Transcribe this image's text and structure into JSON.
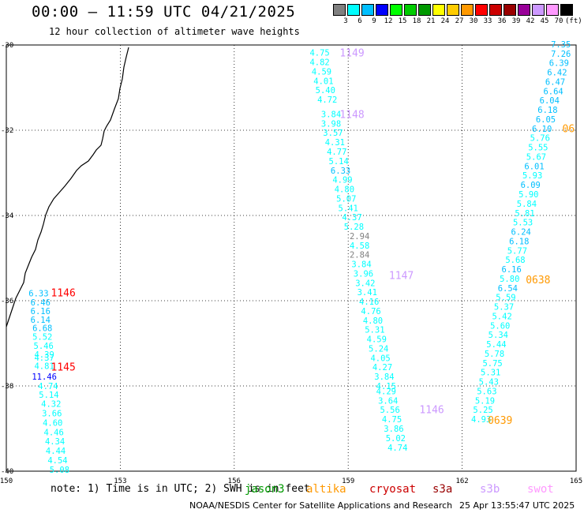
{
  "title": "00:00 – 11:59 UTC 04/21/2025",
  "subtitle": "12 hour collection of altimeter wave heights",
  "legend": {
    "colors": [
      "#808080",
      "#00ffff",
      "#00bfff",
      "#0000ff",
      "#00ff00",
      "#00cc00",
      "#009900",
      "#ffff00",
      "#ffcc00",
      "#ff9900",
      "#ff0000",
      "#cc0000",
      "#990000",
      "#990099",
      "#cc99ff",
      "#ff99ff",
      "#000000"
    ],
    "labels": [
      "3",
      "6",
      "9",
      "12",
      "15",
      "18",
      "21",
      "24",
      "27",
      "30",
      "33",
      "36",
      "39",
      "42",
      "45",
      "70",
      "(ft)"
    ]
  },
  "map": {
    "lon_range": [
      150,
      165
    ],
    "lat_range": [
      -30,
      -40
    ],
    "x_ticks": [
      "150",
      "153",
      "156",
      "159",
      "162",
      "165"
    ],
    "y_ticks": [
      "-30",
      "-32",
      "-34",
      "-36",
      "-38",
      "-40"
    ]
  },
  "passes": [
    {
      "label": "1146",
      "color": "#ff0000",
      "lon": 151.5,
      "lat": -35.81
    },
    {
      "label": "1145",
      "color": "#ff0000",
      "lon": 151.5,
      "lat": -37.55
    },
    {
      "label": "1149",
      "color": "#cc99ff",
      "lon": 159.1,
      "lat": -30.18
    },
    {
      "label": "1148",
      "color": "#cc99ff",
      "lon": 159.1,
      "lat": -31.62
    },
    {
      "label": "1147",
      "color": "#cc99ff",
      "lon": 160.4,
      "lat": -35.4
    },
    {
      "label": "1146",
      "color": "#cc99ff",
      "lon": 161.2,
      "lat": -38.55
    },
    {
      "label": "06",
      "color": "#ff9900",
      "lon": 164.8,
      "lat": -31.95
    },
    {
      "label": "0638",
      "color": "#ff9900",
      "lon": 164.0,
      "lat": -35.5
    },
    {
      "label": "0639",
      "color": "#ff9900",
      "lon": 163.0,
      "lat": -38.8
    }
  ],
  "wave_heights": [
    {
      "lon": 150.85,
      "lat": -35.82,
      "value": "6.33",
      "color": "#00bfff"
    },
    {
      "lon": 150.9,
      "lat": -36.04,
      "value": "6.46",
      "color": "#00bfff"
    },
    {
      "lon": 150.9,
      "lat": -36.24,
      "value": "6.16",
      "color": "#00bfff"
    },
    {
      "lon": 150.9,
      "lat": -36.44,
      "value": "6.14",
      "color": "#00bfff"
    },
    {
      "lon": 150.95,
      "lat": -36.64,
      "value": "6.68",
      "color": "#00bfff"
    },
    {
      "lon": 150.95,
      "lat": -36.84,
      "value": "5.52",
      "color": "#00ffff"
    },
    {
      "lon": 150.98,
      "lat": -37.06,
      "value": "5.46",
      "color": "#00ffff"
    },
    {
      "lon": 151.0,
      "lat": -37.26,
      "value": "4.39",
      "color": "#00ffff"
    },
    {
      "lon": 151.0,
      "lat": -37.33,
      "value": "4.37",
      "color": "#00ffff"
    },
    {
      "lon": 151.0,
      "lat": -37.53,
      "value": "4.81",
      "color": "#00ffff"
    },
    {
      "lon": 151.0,
      "lat": -37.78,
      "value": "11.46",
      "color": "#0000ff"
    },
    {
      "lon": 151.1,
      "lat": -38.0,
      "value": "4.74",
      "color": "#00ffff"
    },
    {
      "lon": 151.12,
      "lat": -38.2,
      "value": "5.14",
      "color": "#00ffff"
    },
    {
      "lon": 151.18,
      "lat": -38.42,
      "value": "4.32",
      "color": "#00ffff"
    },
    {
      "lon": 151.2,
      "lat": -38.64,
      "value": "3.66",
      "color": "#00ffff"
    },
    {
      "lon": 151.22,
      "lat": -38.86,
      "value": "4.60",
      "color": "#00ffff"
    },
    {
      "lon": 151.25,
      "lat": -39.08,
      "value": "4.46",
      "color": "#00ffff"
    },
    {
      "lon": 151.28,
      "lat": -39.3,
      "value": "4.34",
      "color": "#00ffff"
    },
    {
      "lon": 151.3,
      "lat": -39.52,
      "value": "4.44",
      "color": "#00ffff"
    },
    {
      "lon": 151.35,
      "lat": -39.74,
      "value": "4.54",
      "color": "#00ffff"
    },
    {
      "lon": 151.4,
      "lat": -39.96,
      "value": "5.08",
      "color": "#00ffff"
    },
    {
      "lon": 158.25,
      "lat": -30.18,
      "value": "4.75",
      "color": "#00ffff"
    },
    {
      "lon": 158.25,
      "lat": -30.4,
      "value": "4.82",
      "color": "#00ffff"
    },
    {
      "lon": 158.3,
      "lat": -30.62,
      "value": "4.59",
      "color": "#00ffff"
    },
    {
      "lon": 158.35,
      "lat": -30.84,
      "value": "4.01",
      "color": "#00ffff"
    },
    {
      "lon": 158.4,
      "lat": -31.06,
      "value": "5.40",
      "color": "#00ffff"
    },
    {
      "lon": 158.45,
      "lat": -31.28,
      "value": "4.72",
      "color": "#00ffff"
    },
    {
      "lon": 158.55,
      "lat": -31.62,
      "value": "3.84",
      "color": "#00ffff"
    },
    {
      "lon": 158.55,
      "lat": -31.84,
      "value": "3.98",
      "color": "#00ffff"
    },
    {
      "lon": 158.6,
      "lat": -32.06,
      "value": "3.57",
      "color": "#00ffff"
    },
    {
      "lon": 158.65,
      "lat": -32.28,
      "value": "4.31",
      "color": "#00ffff"
    },
    {
      "lon": 158.7,
      "lat": -32.5,
      "value": "4.77",
      "color": "#00ffff"
    },
    {
      "lon": 158.75,
      "lat": -32.72,
      "value": "5.14",
      "color": "#00ffff"
    },
    {
      "lon": 158.8,
      "lat": -32.94,
      "value": "6.33",
      "color": "#00bfff"
    },
    {
      "lon": 158.85,
      "lat": -33.16,
      "value": "4.99",
      "color": "#00ffff"
    },
    {
      "lon": 158.9,
      "lat": -33.38,
      "value": "4.80",
      "color": "#00ffff"
    },
    {
      "lon": 158.95,
      "lat": -33.6,
      "value": "5.07",
      "color": "#00ffff"
    },
    {
      "lon": 159.0,
      "lat": -33.82,
      "value": "5.41",
      "color": "#00ffff"
    },
    {
      "lon": 159.1,
      "lat": -34.04,
      "value": "4.37",
      "color": "#00ffff"
    },
    {
      "lon": 159.15,
      "lat": -34.26,
      "value": "5.28",
      "color": "#00ffff"
    },
    {
      "lon": 159.3,
      "lat": -34.48,
      "value": "2.94",
      "color": "#808080"
    },
    {
      "lon": 159.3,
      "lat": -34.7,
      "value": "4.58",
      "color": "#00ffff"
    },
    {
      "lon": 159.3,
      "lat": -34.92,
      "value": "2.84",
      "color": "#808080"
    },
    {
      "lon": 159.35,
      "lat": -35.14,
      "value": "3.84",
      "color": "#00ffff"
    },
    {
      "lon": 159.4,
      "lat": -35.36,
      "value": "3.96",
      "color": "#00ffff"
    },
    {
      "lon": 159.45,
      "lat": -35.58,
      "value": "3.42",
      "color": "#00ffff"
    },
    {
      "lon": 159.5,
      "lat": -35.8,
      "value": "3.41",
      "color": "#00ffff"
    },
    {
      "lon": 159.55,
      "lat": -36.02,
      "value": "4.16",
      "color": "#00ffff"
    },
    {
      "lon": 159.6,
      "lat": -36.24,
      "value": "4.76",
      "color": "#00ffff"
    },
    {
      "lon": 159.65,
      "lat": -36.46,
      "value": "4.80",
      "color": "#00ffff"
    },
    {
      "lon": 159.7,
      "lat": -36.68,
      "value": "5.31",
      "color": "#00ffff"
    },
    {
      "lon": 159.75,
      "lat": -36.9,
      "value": "4.59",
      "color": "#00ffff"
    },
    {
      "lon": 159.8,
      "lat": -37.12,
      "value": "5.24",
      "color": "#00ffff"
    },
    {
      "lon": 159.85,
      "lat": -37.34,
      "value": "4.05",
      "color": "#00ffff"
    },
    {
      "lon": 159.9,
      "lat": -37.56,
      "value": "4.27",
      "color": "#00ffff"
    },
    {
      "lon": 159.95,
      "lat": -37.78,
      "value": "3.84",
      "color": "#00ffff"
    },
    {
      "lon": 160.0,
      "lat": -38.0,
      "value": "4.15",
      "color": "#00ffff"
    },
    {
      "lon": 160.0,
      "lat": -38.12,
      "value": "4.29",
      "color": "#00ffff"
    },
    {
      "lon": 160.05,
      "lat": -38.34,
      "value": "3.64",
      "color": "#00ffff"
    },
    {
      "lon": 160.1,
      "lat": -38.56,
      "value": "5.56",
      "color": "#00ffff"
    },
    {
      "lon": 160.15,
      "lat": -38.78,
      "value": "4.75",
      "color": "#00ffff"
    },
    {
      "lon": 160.2,
      "lat": -39.0,
      "value": "3.86",
      "color": "#00ffff"
    },
    {
      "lon": 160.25,
      "lat": -39.22,
      "value": "5.02",
      "color": "#00ffff"
    },
    {
      "lon": 160.3,
      "lat": -39.44,
      "value": "4.74",
      "color": "#00ffff"
    },
    {
      "lon": 164.6,
      "lat": -29.98,
      "value": "7.35",
      "color": "#00bfff"
    },
    {
      "lon": 164.6,
      "lat": -30.2,
      "value": "7.26",
      "color": "#00bfff"
    },
    {
      "lon": 164.55,
      "lat": -30.42,
      "value": "6.39",
      "color": "#00bfff"
    },
    {
      "lon": 164.5,
      "lat": -30.64,
      "value": "6.42",
      "color": "#00bfff"
    },
    {
      "lon": 164.45,
      "lat": -30.86,
      "value": "6.47",
      "color": "#00bfff"
    },
    {
      "lon": 164.4,
      "lat": -31.08,
      "value": "6.64",
      "color": "#00bfff"
    },
    {
      "lon": 164.3,
      "lat": -31.3,
      "value": "6.04",
      "color": "#00bfff"
    },
    {
      "lon": 164.25,
      "lat": -31.52,
      "value": "6.18",
      "color": "#00bfff"
    },
    {
      "lon": 164.2,
      "lat": -31.74,
      "value": "6.05",
      "color": "#00bfff"
    },
    {
      "lon": 164.1,
      "lat": -31.96,
      "value": "6.10",
      "color": "#00bfff"
    },
    {
      "lon": 164.05,
      "lat": -32.18,
      "value": "5.76",
      "color": "#00ffff"
    },
    {
      "lon": 164.0,
      "lat": -32.4,
      "value": "5.55",
      "color": "#00ffff"
    },
    {
      "lon": 163.95,
      "lat": -32.62,
      "value": "5.67",
      "color": "#00ffff"
    },
    {
      "lon": 163.9,
      "lat": -32.84,
      "value": "6.01",
      "color": "#00bfff"
    },
    {
      "lon": 163.85,
      "lat": -33.06,
      "value": "5.93",
      "color": "#00ffff"
    },
    {
      "lon": 163.8,
      "lat": -33.28,
      "value": "6.09",
      "color": "#00bfff"
    },
    {
      "lon": 163.75,
      "lat": -33.5,
      "value": "5.90",
      "color": "#00ffff"
    },
    {
      "lon": 163.7,
      "lat": -33.72,
      "value": "5.84",
      "color": "#00ffff"
    },
    {
      "lon": 163.65,
      "lat": -33.94,
      "value": "5.81",
      "color": "#00ffff"
    },
    {
      "lon": 163.6,
      "lat": -34.16,
      "value": "5.53",
      "color": "#00ffff"
    },
    {
      "lon": 163.55,
      "lat": -34.38,
      "value": "6.24",
      "color": "#00bfff"
    },
    {
      "lon": 163.5,
      "lat": -34.6,
      "value": "6.18",
      "color": "#00bfff"
    },
    {
      "lon": 163.45,
      "lat": -34.82,
      "value": "5.77",
      "color": "#00ffff"
    },
    {
      "lon": 163.4,
      "lat": -35.04,
      "value": "5.68",
      "color": "#00ffff"
    },
    {
      "lon": 163.3,
      "lat": -35.26,
      "value": "6.16",
      "color": "#00bfff"
    },
    {
      "lon": 163.25,
      "lat": -35.48,
      "value": "5.80",
      "color": "#00ffff"
    },
    {
      "lon": 163.2,
      "lat": -35.7,
      "value": "6.54",
      "color": "#00bfff"
    },
    {
      "lon": 163.15,
      "lat": -35.92,
      "value": "5.59",
      "color": "#00ffff"
    },
    {
      "lon": 163.1,
      "lat": -36.14,
      "value": "5.37",
      "color": "#00ffff"
    },
    {
      "lon": 163.05,
      "lat": -36.36,
      "value": "5.42",
      "color": "#00ffff"
    },
    {
      "lon": 163.0,
      "lat": -36.58,
      "value": "5.60",
      "color": "#00ffff"
    },
    {
      "lon": 162.95,
      "lat": -36.8,
      "value": "5.34",
      "color": "#00ffff"
    },
    {
      "lon": 162.9,
      "lat": -37.02,
      "value": "5.44",
      "color": "#00ffff"
    },
    {
      "lon": 162.85,
      "lat": -37.24,
      "value": "5.78",
      "color": "#00ffff"
    },
    {
      "lon": 162.8,
      "lat": -37.46,
      "value": "5.75",
      "color": "#00ffff"
    },
    {
      "lon": 162.75,
      "lat": -37.68,
      "value": "5.31",
      "color": "#00ffff"
    },
    {
      "lon": 162.7,
      "lat": -37.9,
      "value": "5.43",
      "color": "#00ffff"
    },
    {
      "lon": 162.65,
      "lat": -38.12,
      "value": "5.63",
      "color": "#00ffff"
    },
    {
      "lon": 162.6,
      "lat": -38.34,
      "value": "5.19",
      "color": "#00ffff"
    },
    {
      "lon": 162.55,
      "lat": -38.56,
      "value": "5.25",
      "color": "#00ffff"
    },
    {
      "lon": 162.5,
      "lat": -38.78,
      "value": "4.93",
      "color": "#00ffff"
    }
  ],
  "note": "note: 1) Time is in UTC; 2) SWH is in feet",
  "satellites": [
    {
      "name": "jason3",
      "color": "#009900"
    },
    {
      "name": "altika",
      "color": "#ff9900"
    },
    {
      "name": "cryosat",
      "color": "#cc0000"
    },
    {
      "name": "s3a",
      "color": "#990000"
    },
    {
      "name": "s3b",
      "color": "#cc99ff"
    },
    {
      "name": "swot",
      "color": "#ff99ff"
    }
  ],
  "credit": "NOAA/NESDIS Center for Satellite Applications and Research",
  "timestamp": "25 Apr 13:55:47 UTC 2025"
}
